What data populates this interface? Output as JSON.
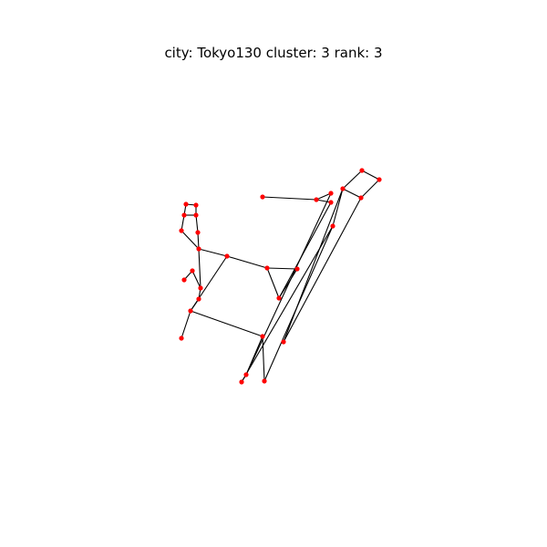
{
  "figure": {
    "title": "city: Tokyo130 cluster: 3 rank: 3"
  },
  "graph": {
    "node_color": "#ff0000",
    "edge_color": "#000000",
    "nodes": [
      {
        "id": "n1"
      },
      {
        "id": "n2"
      },
      {
        "id": "n3"
      },
      {
        "id": "n4"
      },
      {
        "id": "n5"
      },
      {
        "id": "n6"
      },
      {
        "id": "n7"
      },
      {
        "id": "n8"
      },
      {
        "id": "n9"
      },
      {
        "id": "n10"
      },
      {
        "id": "n11"
      },
      {
        "id": "n12"
      },
      {
        "id": "n13"
      },
      {
        "id": "n14"
      },
      {
        "id": "n15"
      },
      {
        "id": "n16"
      },
      {
        "id": "n17"
      },
      {
        "id": "n18"
      },
      {
        "id": "n19"
      },
      {
        "id": "n20"
      },
      {
        "id": "n21"
      },
      {
        "id": "n22"
      },
      {
        "id": "n23"
      },
      {
        "id": "n24"
      },
      {
        "id": "n25"
      },
      {
        "id": "n26"
      },
      {
        "id": "n27"
      },
      {
        "id": "n28"
      },
      {
        "id": "n29"
      },
      {
        "id": "n30"
      },
      {
        "id": "n31"
      }
    ],
    "edges": [
      [
        "n1",
        "n2"
      ],
      [
        "n2",
        "n3"
      ],
      [
        "n3",
        "n4"
      ],
      [
        "n4",
        "n1"
      ],
      [
        "n4",
        "n13"
      ],
      [
        "n4",
        "n12"
      ],
      [
        "n3",
        "n13"
      ],
      [
        "n5",
        "n6"
      ],
      [
        "n6",
        "n7"
      ],
      [
        "n6",
        "n29"
      ],
      [
        "n12",
        "n30"
      ],
      [
        "n12",
        "n31"
      ],
      [
        "n8",
        "n9"
      ],
      [
        "n8",
        "n10"
      ],
      [
        "n10",
        "n11"
      ],
      [
        "n9",
        "n11"
      ],
      [
        "n10",
        "n14"
      ],
      [
        "n11",
        "n15"
      ],
      [
        "n15",
        "n16"
      ],
      [
        "n14",
        "n16"
      ],
      [
        "n16",
        "n19"
      ],
      [
        "n19",
        "n18"
      ],
      [
        "n18",
        "n17"
      ],
      [
        "n19",
        "n20"
      ],
      [
        "n20",
        "n21"
      ],
      [
        "n16",
        "n22"
      ],
      [
        "n22",
        "n23"
      ],
      [
        "n22",
        "n21"
      ],
      [
        "n23",
        "n24"
      ],
      [
        "n23",
        "n25"
      ],
      [
        "n24",
        "n25"
      ],
      [
        "n25",
        "n7"
      ],
      [
        "n21",
        "n26"
      ],
      [
        "n21",
        "n27"
      ],
      [
        "n26",
        "n28"
      ],
      [
        "n28",
        "n29"
      ],
      [
        "n28",
        "n30"
      ],
      [
        "n26",
        "n31"
      ]
    ]
  }
}
